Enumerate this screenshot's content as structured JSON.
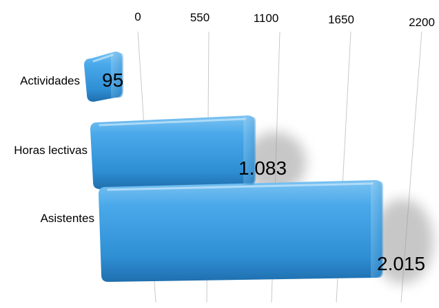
{
  "chart_data": {
    "type": "bar",
    "orientation": "horizontal",
    "categories": [
      "Actividades",
      "Horas lectivas",
      "Asistentes"
    ],
    "values": [
      95,
      1083,
      2015
    ],
    "value_labels": [
      "95",
      "1.083",
      "2.015"
    ],
    "ticks": [
      "0",
      "550",
      "1100",
      "1650",
      "2200"
    ],
    "tick_values": [
      0,
      550,
      1100,
      1650,
      2200
    ],
    "xlim": [
      0,
      2200
    ],
    "grid": true,
    "bar_color": "#3a9ee0",
    "bar_highlight": "#8fcbf4",
    "bar_shadow": "#1f6fae"
  }
}
